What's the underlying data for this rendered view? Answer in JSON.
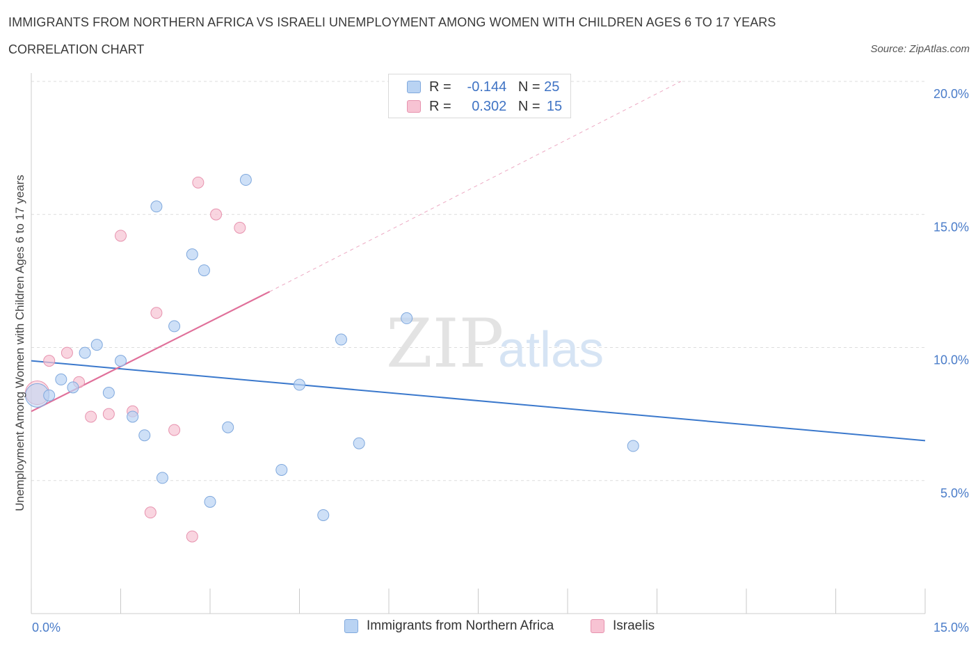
{
  "title": "IMMIGRANTS FROM NORTHERN AFRICA VS ISRAELI UNEMPLOYMENT AMONG WOMEN WITH CHILDREN AGES 6 TO 17 YEARS",
  "subtitle": "CORRELATION CHART",
  "source": "Source: ZipAtlas.com",
  "watermark": {
    "zip": "ZIP",
    "atlas": "atlas"
  },
  "legend": {
    "rows": [
      {
        "r_label": "R =",
        "r_value": "-0.144",
        "n_label": "N =",
        "n_value": "25"
      },
      {
        "r_label": "R =",
        "r_value": "0.302",
        "n_label": "N =",
        "n_value": "15"
      }
    ]
  },
  "colors": {
    "blue_fill": "#b9d3f3",
    "blue_stroke": "#7fa8dd",
    "blue_line": "#3a78cc",
    "pink_fill": "#f7c3d3",
    "pink_stroke": "#e792ae",
    "pink_line": "#e0709a",
    "grid": "#dddddd",
    "tick_text": "#4a7cc9"
  },
  "chart_data": {
    "type": "scatter",
    "title": "IMMIGRANTS FROM NORTHERN AFRICA VS ISRAELI UNEMPLOYMENT AMONG WOMEN WITH CHILDREN AGES 6 TO 17 YEARS",
    "subtitle": "CORRELATION CHART",
    "xlabel": "",
    "ylabel": "Unemployment Among Women with Children Ages 6 to 17 years",
    "xlim": [
      0,
      15
    ],
    "ylim": [
      0,
      20
    ],
    "x_tick_labels": [
      "0.0%",
      "15.0%"
    ],
    "y_tick_labels": [
      "5.0%",
      "10.0%",
      "15.0%",
      "20.0%"
    ],
    "y_ticks": [
      5,
      10,
      15,
      20
    ],
    "grid": true,
    "legend_position": "top-center",
    "series": [
      {
        "name": "Immigrants from Northern Africa",
        "color": "#b9d3f3",
        "R": -0.144,
        "N": 25,
        "points": [
          {
            "x": 0.1,
            "y": 8.2,
            "big": true
          },
          {
            "x": 0.3,
            "y": 8.2
          },
          {
            "x": 0.5,
            "y": 8.8
          },
          {
            "x": 0.7,
            "y": 8.5
          },
          {
            "x": 0.9,
            "y": 9.8
          },
          {
            "x": 1.1,
            "y": 10.1
          },
          {
            "x": 1.3,
            "y": 8.3
          },
          {
            "x": 1.5,
            "y": 9.5
          },
          {
            "x": 1.7,
            "y": 7.4
          },
          {
            "x": 1.9,
            "y": 6.7
          },
          {
            "x": 2.1,
            "y": 15.3
          },
          {
            "x": 2.2,
            "y": 5.1
          },
          {
            "x": 2.4,
            "y": 10.8
          },
          {
            "x": 2.7,
            "y": 13.5
          },
          {
            "x": 2.9,
            "y": 12.9
          },
          {
            "x": 3.0,
            "y": 4.2
          },
          {
            "x": 3.3,
            "y": 7.0
          },
          {
            "x": 3.6,
            "y": 16.3
          },
          {
            "x": 4.2,
            "y": 5.4
          },
          {
            "x": 4.5,
            "y": 8.6
          },
          {
            "x": 4.9,
            "y": 3.7
          },
          {
            "x": 5.2,
            "y": 10.3
          },
          {
            "x": 5.5,
            "y": 6.4
          },
          {
            "x": 6.3,
            "y": 11.1
          },
          {
            "x": 10.1,
            "y": 6.3
          }
        ],
        "trend": {
          "x0": 0,
          "y0": 9.5,
          "x1": 15,
          "y1": 6.5
        }
      },
      {
        "name": "Israelis",
        "color": "#f7c3d3",
        "R": 0.302,
        "N": 15,
        "points": [
          {
            "x": 0.1,
            "y": 8.3,
            "big": true
          },
          {
            "x": 0.3,
            "y": 9.5
          },
          {
            "x": 0.6,
            "y": 9.8
          },
          {
            "x": 0.8,
            "y": 8.7
          },
          {
            "x": 1.0,
            "y": 7.4
          },
          {
            "x": 1.3,
            "y": 7.5
          },
          {
            "x": 1.5,
            "y": 14.2
          },
          {
            "x": 1.7,
            "y": 7.6
          },
          {
            "x": 2.0,
            "y": 3.8
          },
          {
            "x": 2.1,
            "y": 11.3
          },
          {
            "x": 2.4,
            "y": 6.9
          },
          {
            "x": 2.7,
            "y": 2.9
          },
          {
            "x": 2.8,
            "y": 16.2
          },
          {
            "x": 3.1,
            "y": 15.0
          },
          {
            "x": 3.5,
            "y": 14.5
          }
        ],
        "trend": {
          "x0": 0,
          "y0": 7.6,
          "x1": 4.0,
          "y1": 12.1
        },
        "trend_dashed_to": {
          "x": 10.9,
          "y": 20
        }
      }
    ]
  },
  "bottom_legend": {
    "series_1": "Immigrants from Northern Africa",
    "series_2": "Israelis"
  }
}
